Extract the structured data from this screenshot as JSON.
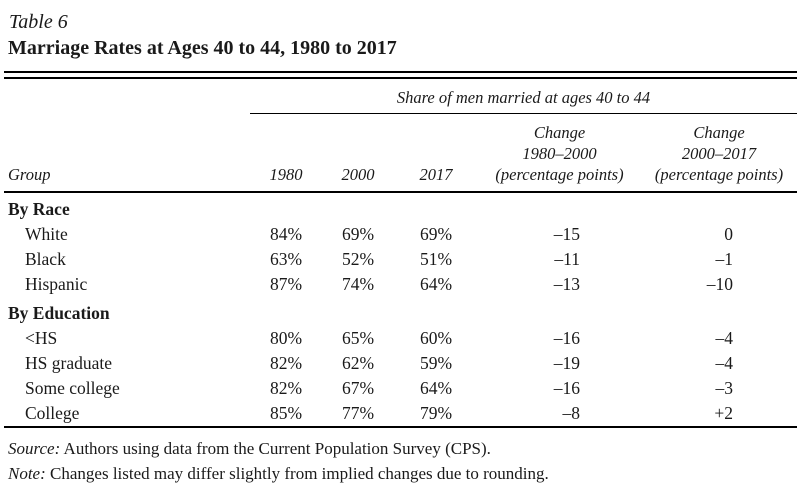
{
  "table": {
    "label": "Table 6",
    "title": "Marriage Rates at Ages 40 to 44, 1980 to 2017",
    "span_header": "Share of men married at ages 40 to 44",
    "columns": {
      "group": "Group",
      "year1": "1980",
      "year2": "2000",
      "year3": "2017",
      "change_1980_2000": [
        "Change",
        "1980–2000",
        "(percentage points)"
      ],
      "change_2000_2017": [
        "Change",
        "2000–2017",
        "(percentage points)"
      ]
    },
    "sections": [
      {
        "header": "By Race",
        "rows": [
          {
            "group": "White",
            "values": [
              "84%",
              "69%",
              "69%",
              "–15",
              "0"
            ]
          },
          {
            "group": "Black",
            "values": [
              "63%",
              "52%",
              "51%",
              "–11",
              "–1"
            ]
          },
          {
            "group": "Hispanic",
            "values": [
              "87%",
              "74%",
              "64%",
              "–13",
              "–10"
            ]
          }
        ]
      },
      {
        "header": "By Education",
        "rows": [
          {
            "group": "<HS",
            "values": [
              "80%",
              "65%",
              "60%",
              "–16",
              "–4"
            ]
          },
          {
            "group": "HS graduate",
            "values": [
              "82%",
              "62%",
              "59%",
              "–19",
              "–4"
            ]
          },
          {
            "group": "Some college",
            "values": [
              "82%",
              "67%",
              "64%",
              "–16",
              "–3"
            ]
          },
          {
            "group": "College",
            "values": [
              "85%",
              "77%",
              "79%",
              "–8",
              "+2"
            ]
          }
        ]
      }
    ],
    "source_label": "Source:",
    "source_text": " Authors using data from the Current Population Survey (CPS).",
    "note_label": "Note:",
    "note_text": " Changes listed may differ slightly from implied changes due to rounding."
  }
}
